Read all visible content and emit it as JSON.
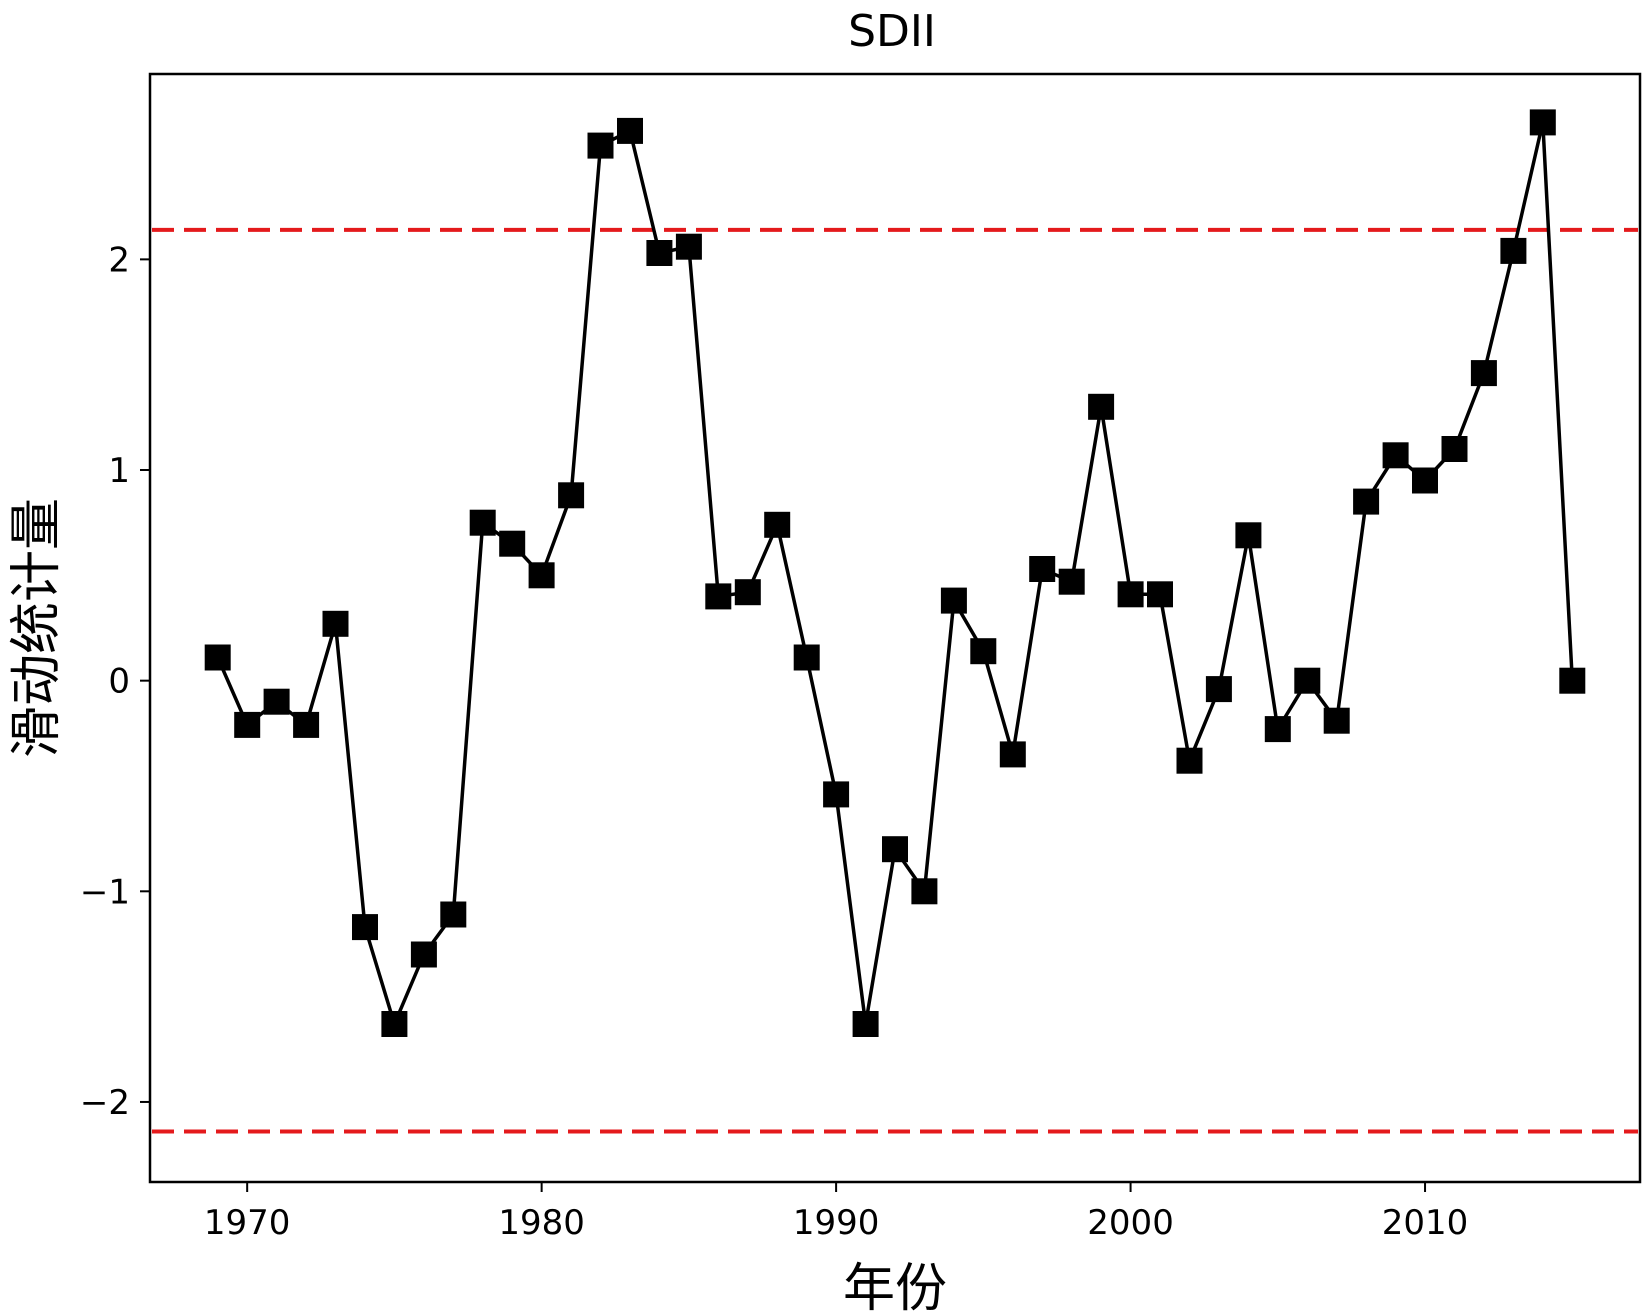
{
  "chart_data": {
    "type": "line",
    "title": "SDII",
    "xlabel": "年份",
    "ylabel": "滑动统计量",
    "xlim": [
      1966.7,
      2017.3
    ],
    "ylim": [
      -2.38,
      2.88
    ],
    "xticks": [
      1970,
      1980,
      1990,
      2000,
      2010
    ],
    "yticks": [
      -2,
      -1,
      0,
      1,
      2
    ],
    "ytick_labels": [
      "−2",
      "−1",
      "0",
      "1",
      "2"
    ],
    "grid": false,
    "legend": "none",
    "series": [
      {
        "marker": "square",
        "color": "#000000",
        "x": [
          1969,
          1970,
          1971,
          1972,
          1973,
          1974,
          1975,
          1976,
          1977,
          1978,
          1979,
          1980,
          1981,
          1982,
          1983,
          1984,
          1985,
          1986,
          1987,
          1988,
          1989,
          1990,
          1991,
          1992,
          1993,
          1994,
          1995,
          1996,
          1997,
          1998,
          1999,
          2000,
          2001,
          2002,
          2003,
          2004,
          2005,
          2006,
          2007,
          2008,
          2009,
          2010,
          2011,
          2012,
          2013,
          2014,
          2015
        ],
        "y": [
          0.11,
          -0.21,
          -0.1,
          -0.21,
          0.27,
          -1.17,
          -1.63,
          -1.3,
          -1.11,
          0.75,
          0.65,
          0.5,
          0.88,
          2.54,
          2.61,
          2.03,
          2.06,
          0.4,
          0.42,
          0.74,
          0.11,
          -0.54,
          -1.63,
          -0.8,
          -1.0,
          0.38,
          0.14,
          -0.35,
          0.53,
          0.47,
          1.3,
          0.41,
          0.41,
          -0.38,
          -0.04,
          0.69,
          -0.23,
          0.0,
          -0.19,
          0.85,
          1.07,
          0.95,
          1.1,
          1.46,
          2.04,
          2.65,
          0.0
        ]
      }
    ],
    "reference_lines": [
      {
        "y": 2.14,
        "color": "#e41a1c",
        "style": "dashed"
      },
      {
        "y": -2.14,
        "color": "#e41a1c",
        "style": "dashed"
      }
    ]
  }
}
